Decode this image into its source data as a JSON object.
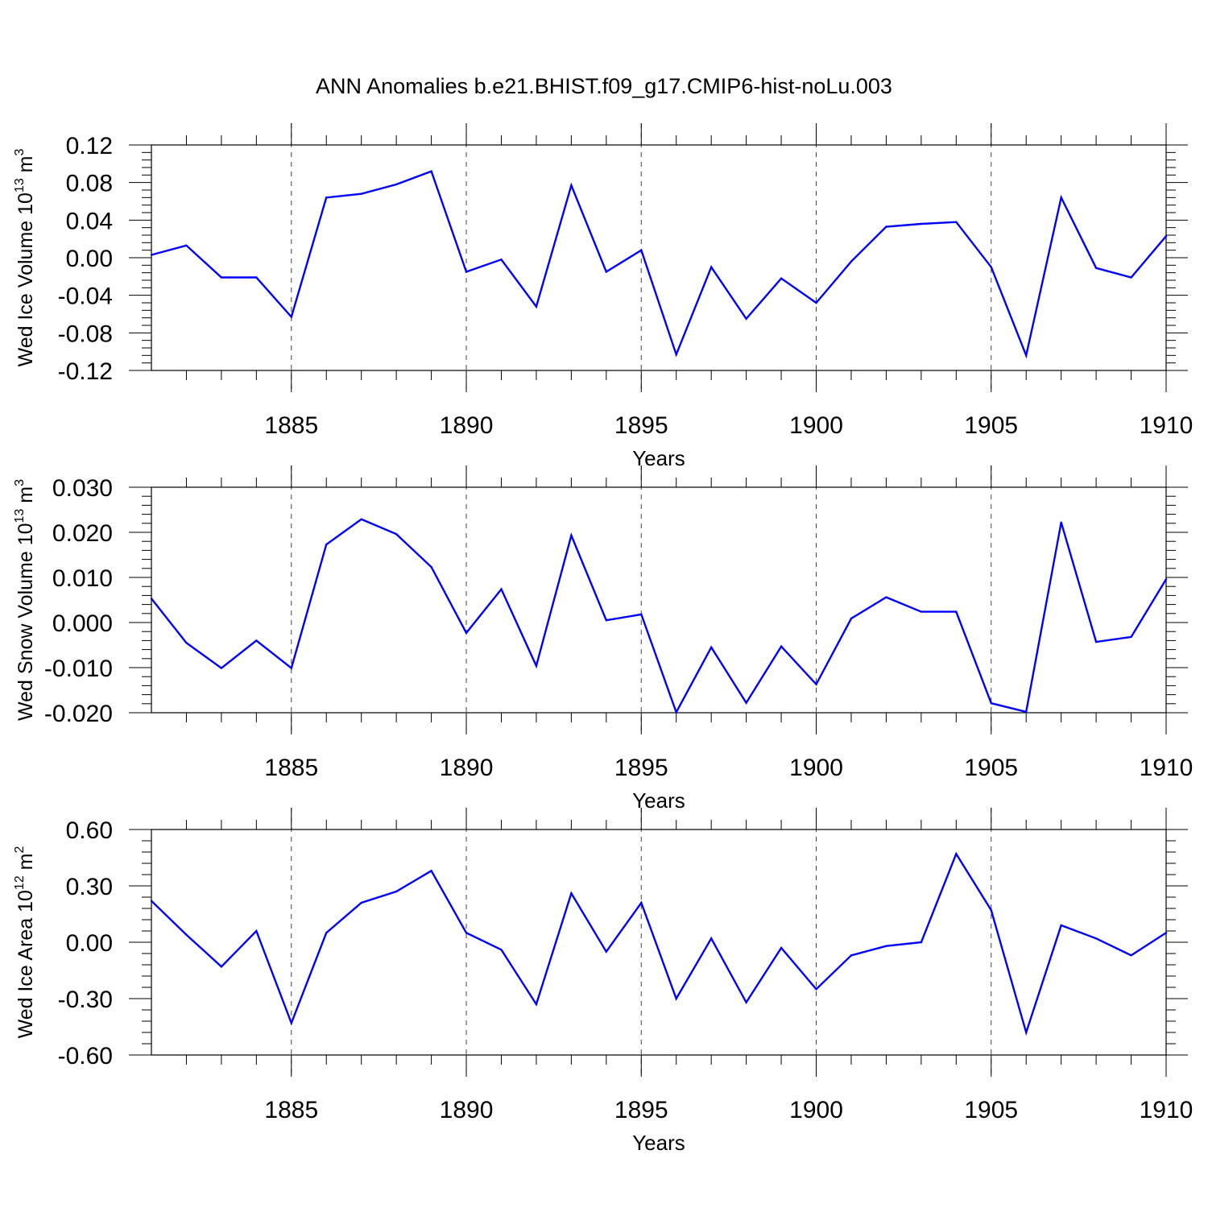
{
  "title": "ANN Anomalies b.e21.BHIST.f09_g17.CMIP6-hist-noLu.003",
  "chart_data": [
    {
      "type": "line",
      "xlabel": "Years",
      "ylabel": {
        "text": "Wed Ice Volume 10",
        "exponent": "13",
        "unit": " m",
        "unit_exponent": "3"
      },
      "xlim": [
        1881,
        1910
      ],
      "ylim": [
        -0.12,
        0.12
      ],
      "x_ticks": [
        1885,
        1890,
        1895,
        1900,
        1905,
        1910
      ],
      "y_ticks": [
        -0.12,
        -0.08,
        -0.04,
        0.0,
        0.04,
        0.08,
        0.12
      ],
      "y_tick_labels": [
        "-0.12",
        "-0.08",
        "-0.04",
        "0.00",
        "0.04",
        "0.08",
        "0.12"
      ],
      "color": "#0000ff",
      "x": [
        1881,
        1882,
        1883,
        1884,
        1885,
        1886,
        1887,
        1888,
        1889,
        1890,
        1891,
        1892,
        1893,
        1894,
        1895,
        1896,
        1897,
        1898,
        1899,
        1900,
        1901,
        1902,
        1903,
        1904,
        1905,
        1906,
        1907,
        1908,
        1909,
        1910
      ],
      "values": [
        0.003,
        0.013,
        -0.021,
        -0.021,
        -0.063,
        0.064,
        0.068,
        0.078,
        0.092,
        -0.015,
        -0.002,
        -0.052,
        0.077,
        -0.015,
        0.008,
        -0.103,
        -0.01,
        -0.065,
        -0.022,
        -0.048,
        -0.004,
        0.033,
        0.036,
        0.038,
        -0.01,
        -0.104,
        0.064,
        -0.011,
        -0.021,
        0.023
      ],
      "grid": "vertical dashed at labeled years"
    },
    {
      "type": "line",
      "xlabel": "Years",
      "ylabel": {
        "text": "Wed Snow Volume 10",
        "exponent": "13",
        "unit": " m",
        "unit_exponent": "3"
      },
      "xlim": [
        1881,
        1910
      ],
      "ylim": [
        -0.02,
        0.03
      ],
      "x_ticks": [
        1885,
        1890,
        1895,
        1900,
        1905,
        1910
      ],
      "y_ticks": [
        -0.02,
        -0.01,
        0.0,
        0.01,
        0.02,
        0.03
      ],
      "y_tick_labels": [
        "-0.020",
        "-0.010",
        "0.000",
        "0.010",
        "0.020",
        "0.030"
      ],
      "color": "#0000ff",
      "x": [
        1881,
        1882,
        1883,
        1884,
        1885,
        1886,
        1887,
        1888,
        1889,
        1890,
        1891,
        1892,
        1893,
        1894,
        1895,
        1896,
        1897,
        1898,
        1899,
        1900,
        1901,
        1902,
        1903,
        1904,
        1905,
        1906,
        1907,
        1908,
        1909,
        1910
      ],
      "values": [
        0.0053,
        -0.0045,
        -0.0101,
        -0.004,
        -0.0101,
        0.0173,
        0.0229,
        0.0196,
        0.0123,
        -0.0023,
        0.0074,
        -0.0096,
        0.0193,
        0.0005,
        0.0018,
        -0.0199,
        -0.0055,
        -0.0178,
        -0.0053,
        -0.0137,
        0.0009,
        0.0056,
        0.0024,
        0.0024,
        -0.0179,
        -0.0198,
        0.0222,
        -0.0043,
        -0.0032,
        0.0096
      ],
      "grid": "vertical dashed at labeled years"
    },
    {
      "type": "line",
      "xlabel": "Years",
      "ylabel": {
        "text": "Wed Ice Area 10",
        "exponent": "12",
        "unit": " m",
        "unit_exponent": "2"
      },
      "xlim": [
        1881,
        1910
      ],
      "ylim": [
        -0.6,
        0.6
      ],
      "x_ticks": [
        1885,
        1890,
        1895,
        1900,
        1905,
        1910
      ],
      "y_ticks": [
        -0.6,
        -0.3,
        0.0,
        0.3,
        0.6
      ],
      "y_tick_labels": [
        "-0.60",
        "-0.30",
        "0.00",
        "0.30",
        "0.60"
      ],
      "color": "#0000ff",
      "x": [
        1881,
        1882,
        1883,
        1884,
        1885,
        1886,
        1887,
        1888,
        1889,
        1890,
        1891,
        1892,
        1893,
        1894,
        1895,
        1896,
        1897,
        1898,
        1899,
        1900,
        1901,
        1902,
        1903,
        1904,
        1905,
        1906,
        1907,
        1908,
        1909,
        1910
      ],
      "values": [
        0.22,
        0.04,
        -0.13,
        0.06,
        -0.43,
        0.05,
        0.21,
        0.27,
        0.38,
        0.05,
        -0.04,
        -0.33,
        0.26,
        -0.05,
        0.21,
        -0.3,
        0.02,
        -0.32,
        -0.03,
        -0.25,
        -0.07,
        -0.02,
        0.0,
        0.47,
        0.17,
        -0.48,
        0.09,
        0.02,
        -0.07,
        0.05
      ],
      "grid": "vertical dashed at labeled years"
    }
  ]
}
